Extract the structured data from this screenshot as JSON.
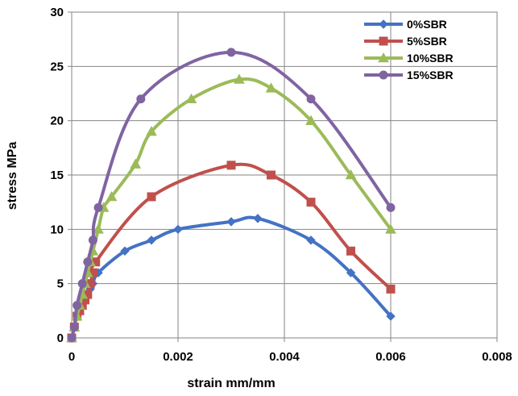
{
  "chart_data": {
    "type": "scatter",
    "title": "",
    "xlabel": "strain mm/mm",
    "ylabel": "stress MPa",
    "xlim": [
      0,
      0.008
    ],
    "ylim": [
      0,
      30
    ],
    "xticks": [
      0,
      0.002,
      0.004,
      0.006,
      0.008
    ],
    "xtick_labels": [
      "0",
      "0.002",
      "0.004",
      "0.006",
      "0.008"
    ],
    "yticks": [
      0,
      5,
      10,
      15,
      20,
      25,
      30
    ],
    "ytick_labels": [
      "0",
      "5",
      "10",
      "15",
      "20",
      "25",
      "30"
    ],
    "grid": true,
    "legend_position": "top-right",
    "series": [
      {
        "name": "0%SBR",
        "color": "#4472C4",
        "marker": "diamond",
        "x": [
          0,
          5e-05,
          0.0001,
          0.00015,
          0.0002,
          0.00025,
          0.0003,
          0.00035,
          0.0004,
          0.0005,
          0.001,
          0.0015,
          0.002,
          0.003,
          0.0035,
          0.0045,
          0.00525,
          0.006
        ],
        "y": [
          0,
          1,
          2,
          2.5,
          3,
          3.5,
          4,
          4.5,
          5,
          6,
          8,
          9,
          10,
          10.7,
          11,
          9,
          6,
          2
        ]
      },
      {
        "name": "5%SBR",
        "color": "#C0504D",
        "marker": "square",
        "x": [
          0,
          5e-05,
          0.0001,
          0.00015,
          0.0002,
          0.00025,
          0.0003,
          0.00035,
          0.0004,
          0.00045,
          0.0015,
          0.003,
          0.00375,
          0.0045,
          0.00525,
          0.006
        ],
        "y": [
          0,
          1,
          2,
          2.5,
          3,
          3.5,
          4,
          5,
          6,
          7,
          13,
          15.9,
          15,
          12.5,
          8,
          4.5
        ]
      },
      {
        "name": "10%SBR",
        "color": "#9BBB59",
        "marker": "triangle",
        "x": [
          0,
          5e-05,
          0.0001,
          0.00015,
          0.0002,
          0.00025,
          0.0003,
          0.00035,
          0.0004,
          0.0005,
          0.0006,
          0.00075,
          0.0012,
          0.0015,
          0.00225,
          0.00315,
          0.00375,
          0.0045,
          0.00525,
          0.006
        ],
        "y": [
          0,
          1,
          2,
          3,
          4,
          5,
          6,
          7,
          8,
          10,
          12,
          13,
          16,
          19,
          22,
          23.8,
          23,
          20,
          15,
          10
        ]
      },
      {
        "name": "15%SBR",
        "color": "#8064A2",
        "marker": "circle",
        "x": [
          0,
          5e-05,
          0.0001,
          0.0002,
          0.0003,
          0.0004,
          0.0005,
          0.0013,
          0.003,
          0.0045,
          0.006
        ],
        "y": [
          0,
          1,
          3,
          5,
          7,
          9,
          12,
          22,
          26.3,
          22,
          12
        ]
      }
    ]
  }
}
